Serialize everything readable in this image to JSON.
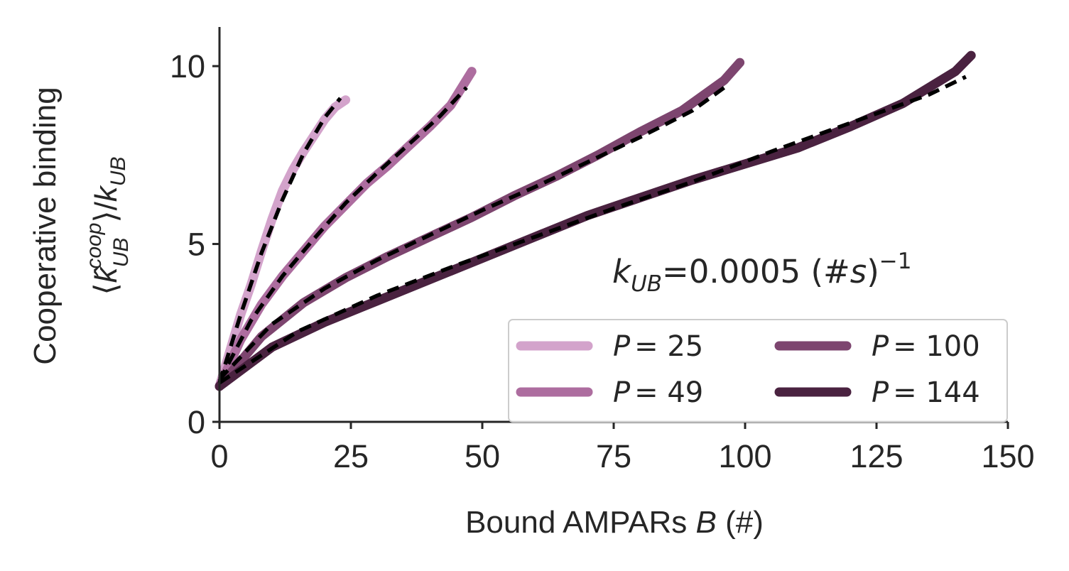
{
  "chart_data": {
    "type": "line",
    "xlabel": "Bound AMPARs B (#)",
    "ylabel_line1": "Cooperative binding",
    "ylabel_line2": "⟨k̂ᶜᵒᵒᵖ_UB⟩/k_UB",
    "xlim": [
      0,
      150
    ],
    "ylim": [
      0,
      11.1
    ],
    "x_ticks": [
      0,
      25,
      50,
      75,
      100,
      125,
      150
    ],
    "x_tick_labels": [
      "0",
      "25",
      "50",
      "75",
      "100",
      "125",
      "150"
    ],
    "y_ticks": [
      0,
      5,
      10
    ],
    "y_tick_labels": [
      "0",
      "5",
      "10"
    ],
    "annotation": "k_UB=0.0005 (#s)^-1",
    "annotation_parts": {
      "k": "k",
      "sub": "UB",
      "eq": "=0.0005 (#",
      "s": "s",
      "close": ")",
      "exp": "−1"
    },
    "legend_position": "lower-right",
    "legend_columns": 2,
    "fit_style": "black-dashed",
    "series": [
      {
        "name": "P = 25",
        "label_var": "P",
        "label_val": "= 25",
        "color": "#d3a3cb",
        "x": [
          0,
          2,
          4,
          6,
          8,
          10,
          12,
          14,
          16,
          18,
          20,
          22,
          24
        ],
        "y": [
          1.0,
          2.0,
          3.0,
          3.85,
          4.8,
          5.7,
          6.5,
          7.1,
          7.6,
          8.05,
          8.5,
          8.85,
          9.05
        ],
        "fit_x": [
          0,
          4,
          8,
          12,
          16,
          20,
          23
        ],
        "fit_y": [
          1.1,
          3.0,
          4.75,
          6.25,
          7.55,
          8.55,
          9.1
        ]
      },
      {
        "name": "P = 49",
        "label_var": "P",
        "label_val": "= 49",
        "color": "#ad6d9f",
        "x": [
          0,
          4,
          8,
          12,
          16,
          20,
          24,
          28,
          32,
          36,
          40,
          44,
          48
        ],
        "y": [
          1.0,
          2.3,
          3.3,
          4.1,
          4.8,
          5.5,
          6.1,
          6.7,
          7.2,
          7.75,
          8.3,
          8.9,
          9.85
        ],
        "fit_x": [
          0,
          6,
          12,
          18,
          24,
          30,
          36,
          42,
          47
        ],
        "fit_y": [
          1.15,
          2.85,
          4.1,
          5.15,
          6.15,
          7.0,
          7.8,
          8.6,
          9.4
        ]
      },
      {
        "name": "P = 100",
        "label_var": "P",
        "label_val": "= 100",
        "color": "#7d456f",
        "x": [
          0,
          8,
          16,
          24,
          32,
          40,
          48,
          56,
          64,
          72,
          80,
          88,
          96,
          99
        ],
        "y": [
          1.0,
          2.4,
          3.35,
          4.05,
          4.65,
          5.2,
          5.75,
          6.35,
          6.9,
          7.5,
          8.15,
          8.75,
          9.6,
          10.1
        ],
        "fit_x": [
          0,
          10,
          20,
          30,
          40,
          50,
          60,
          70,
          80,
          90,
          97
        ],
        "fit_y": [
          1.2,
          2.75,
          3.75,
          4.55,
          5.25,
          5.95,
          6.6,
          7.3,
          8.0,
          8.75,
          9.5
        ]
      },
      {
        "name": "P = 144",
        "label_var": "P",
        "label_val": "= 144",
        "color": "#4a2240",
        "x": [
          0,
          10,
          20,
          30,
          40,
          50,
          60,
          70,
          80,
          90,
          100,
          110,
          120,
          130,
          140,
          143
        ],
        "y": [
          1.0,
          2.1,
          2.8,
          3.4,
          4.0,
          4.6,
          5.2,
          5.8,
          6.3,
          6.8,
          7.25,
          7.7,
          8.3,
          8.95,
          9.85,
          10.3
        ],
        "fit_x": [
          0,
          15,
          30,
          45,
          60,
          75,
          90,
          105,
          120,
          135,
          142
        ],
        "fit_y": [
          1.1,
          2.55,
          3.55,
          4.4,
          5.2,
          6.0,
          6.75,
          7.6,
          8.4,
          9.2,
          9.7
        ]
      }
    ]
  }
}
